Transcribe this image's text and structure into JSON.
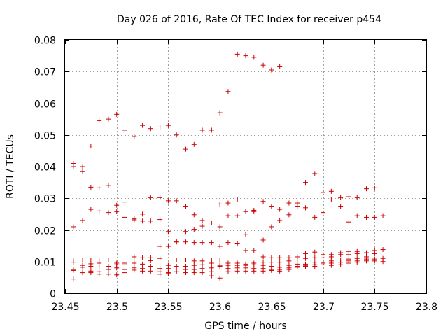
{
  "chart_data": {
    "type": "scatter",
    "title": "Day 026 of 2016, Rate Of TEC Index for receiver p454",
    "xlabel": "GPS time / hours",
    "ylabel": "ROTI / TECUs",
    "xlim": [
      23.45,
      23.8
    ],
    "ylim": [
      0,
      0.08
    ],
    "x_ticks": [
      23.45,
      23.5,
      23.55,
      23.6,
      23.65,
      23.7,
      23.75,
      23.8
    ],
    "x_tick_labels": [
      "23.45",
      "23.5",
      "23.55",
      "23.6",
      "23.65",
      "23.7",
      "23.75",
      "23.8"
    ],
    "y_ticks": [
      0,
      0.01,
      0.02,
      0.03,
      0.04,
      0.05,
      0.06,
      0.07,
      0.08
    ],
    "y_tick_labels": [
      "0",
      "0.01",
      "0.02",
      "0.03",
      "0.04",
      "0.05",
      "0.06",
      "0.07",
      "0.08"
    ],
    "grid": true,
    "legend": "none",
    "marker": "plus",
    "series_color": "#cc0000",
    "points": [
      [
        23.458,
        0.041
      ],
      [
        23.458,
        0.04
      ],
      [
        23.458,
        0.021
      ],
      [
        23.458,
        0.0105
      ],
      [
        23.458,
        0.0098
      ],
      [
        23.458,
        0.0075
      ],
      [
        23.458,
        0.0072
      ],
      [
        23.458,
        0.0045
      ],
      [
        23.467,
        0.04
      ],
      [
        23.467,
        0.0385
      ],
      [
        23.467,
        0.023
      ],
      [
        23.467,
        0.0105
      ],
      [
        23.467,
        0.0088
      ],
      [
        23.467,
        0.0082
      ],
      [
        23.467,
        0.0065
      ],
      [
        23.475,
        0.0465
      ],
      [
        23.475,
        0.0335
      ],
      [
        23.475,
        0.0265
      ],
      [
        23.475,
        0.0105
      ],
      [
        23.475,
        0.0093
      ],
      [
        23.475,
        0.0085
      ],
      [
        23.475,
        0.007
      ],
      [
        23.475,
        0.0065
      ],
      [
        23.483,
        0.0545
      ],
      [
        23.483,
        0.0333
      ],
      [
        23.483,
        0.026
      ],
      [
        23.483,
        0.0105
      ],
      [
        23.483,
        0.0095
      ],
      [
        23.483,
        0.0083
      ],
      [
        23.483,
        0.0068
      ],
      [
        23.483,
        0.006
      ],
      [
        23.492,
        0.055
      ],
      [
        23.492,
        0.034
      ],
      [
        23.492,
        0.0255
      ],
      [
        23.492,
        0.0105
      ],
      [
        23.492,
        0.0085
      ],
      [
        23.492,
        0.0075
      ],
      [
        23.492,
        0.006
      ],
      [
        23.5,
        0.0565
      ],
      [
        23.5,
        0.0278
      ],
      [
        23.5,
        0.0258
      ],
      [
        23.5,
        0.0095
      ],
      [
        23.5,
        0.009
      ],
      [
        23.5,
        0.008
      ],
      [
        23.5,
        0.0058
      ],
      [
        23.508,
        0.0515
      ],
      [
        23.508,
        0.0288
      ],
      [
        23.508,
        0.024
      ],
      [
        23.508,
        0.0095
      ],
      [
        23.508,
        0.009
      ],
      [
        23.508,
        0.0075
      ],
      [
        23.508,
        0.0065
      ],
      [
        23.517,
        0.0495
      ],
      [
        23.517,
        0.0235
      ],
      [
        23.517,
        0.0232
      ],
      [
        23.517,
        0.0115
      ],
      [
        23.517,
        0.0095
      ],
      [
        23.517,
        0.008
      ],
      [
        23.517,
        0.0073
      ],
      [
        23.525,
        0.053
      ],
      [
        23.525,
        0.025
      ],
      [
        23.525,
        0.0228
      ],
      [
        23.525,
        0.0112
      ],
      [
        23.525,
        0.0092
      ],
      [
        23.525,
        0.0078
      ],
      [
        23.525,
        0.007
      ],
      [
        23.533,
        0.052
      ],
      [
        23.533,
        0.0302
      ],
      [
        23.533,
        0.0228
      ],
      [
        23.533,
        0.0112
      ],
      [
        23.533,
        0.0103
      ],
      [
        23.533,
        0.0085
      ],
      [
        23.533,
        0.007
      ],
      [
        23.542,
        0.0525
      ],
      [
        23.542,
        0.0302
      ],
      [
        23.542,
        0.0233
      ],
      [
        23.542,
        0.0148
      ],
      [
        23.542,
        0.011
      ],
      [
        23.542,
        0.0078
      ],
      [
        23.542,
        0.0068
      ],
      [
        23.542,
        0.006
      ],
      [
        23.55,
        0.053
      ],
      [
        23.55,
        0.0292
      ],
      [
        23.55,
        0.0195
      ],
      [
        23.55,
        0.0148
      ],
      [
        23.55,
        0.0088
      ],
      [
        23.55,
        0.0078
      ],
      [
        23.55,
        0.0065
      ],
      [
        23.55,
        0.0062
      ],
      [
        23.558,
        0.05
      ],
      [
        23.558,
        0.0292
      ],
      [
        23.558,
        0.0162
      ],
      [
        23.558,
        0.0162
      ],
      [
        23.558,
        0.0105
      ],
      [
        23.558,
        0.0085
      ],
      [
        23.558,
        0.0068
      ],
      [
        23.567,
        0.0455
      ],
      [
        23.567,
        0.0275
      ],
      [
        23.567,
        0.0195
      ],
      [
        23.567,
        0.0162
      ],
      [
        23.567,
        0.0105
      ],
      [
        23.567,
        0.0085
      ],
      [
        23.567,
        0.0075
      ],
      [
        23.567,
        0.0065
      ],
      [
        23.575,
        0.047
      ],
      [
        23.575,
        0.0248
      ],
      [
        23.575,
        0.0202
      ],
      [
        23.575,
        0.016
      ],
      [
        23.575,
        0.0102
      ],
      [
        23.575,
        0.0088
      ],
      [
        23.575,
        0.0075
      ],
      [
        23.575,
        0.0065
      ],
      [
        23.583,
        0.0515
      ],
      [
        23.583,
        0.023
      ],
      [
        23.583,
        0.0212
      ],
      [
        23.583,
        0.016
      ],
      [
        23.583,
        0.0102
      ],
      [
        23.583,
        0.009
      ],
      [
        23.583,
        0.0078
      ],
      [
        23.583,
        0.0065
      ],
      [
        23.592,
        0.0515
      ],
      [
        23.592,
        0.0222
      ],
      [
        23.592,
        0.016
      ],
      [
        23.592,
        0.0105
      ],
      [
        23.592,
        0.0095
      ],
      [
        23.592,
        0.008
      ],
      [
        23.592,
        0.0068
      ],
      [
        23.592,
        0.0055
      ],
      [
        23.6,
        0.057
      ],
      [
        23.6,
        0.0282
      ],
      [
        23.6,
        0.021
      ],
      [
        23.6,
        0.0148
      ],
      [
        23.6,
        0.0105
      ],
      [
        23.6,
        0.0088
      ],
      [
        23.6,
        0.0085
      ],
      [
        23.6,
        0.0048
      ],
      [
        23.608,
        0.0637
      ],
      [
        23.608,
        0.0285
      ],
      [
        23.608,
        0.0245
      ],
      [
        23.608,
        0.016
      ],
      [
        23.608,
        0.0095
      ],
      [
        23.608,
        0.0088
      ],
      [
        23.608,
        0.0078
      ],
      [
        23.608,
        0.0068
      ],
      [
        23.617,
        0.0755
      ],
      [
        23.617,
        0.0295
      ],
      [
        23.617,
        0.0245
      ],
      [
        23.617,
        0.0158
      ],
      [
        23.617,
        0.0095
      ],
      [
        23.617,
        0.0088
      ],
      [
        23.617,
        0.008
      ],
      [
        23.617,
        0.007
      ],
      [
        23.625,
        0.075
      ],
      [
        23.625,
        0.0258
      ],
      [
        23.625,
        0.0185
      ],
      [
        23.625,
        0.0135
      ],
      [
        23.625,
        0.0092
      ],
      [
        23.625,
        0.0088
      ],
      [
        23.625,
        0.008
      ],
      [
        23.625,
        0.007
      ],
      [
        23.633,
        0.0745
      ],
      [
        23.633,
        0.0262
      ],
      [
        23.633,
        0.0258
      ],
      [
        23.633,
        0.0135
      ],
      [
        23.633,
        0.0095
      ],
      [
        23.633,
        0.009
      ],
      [
        23.633,
        0.0078
      ],
      [
        23.633,
        0.007
      ],
      [
        23.642,
        0.072
      ],
      [
        23.642,
        0.029
      ],
      [
        23.642,
        0.0168
      ],
      [
        23.642,
        0.0115
      ],
      [
        23.642,
        0.0098
      ],
      [
        23.642,
        0.0088
      ],
      [
        23.642,
        0.0078
      ],
      [
        23.642,
        0.007
      ],
      [
        23.65,
        0.0705
      ],
      [
        23.65,
        0.0275
      ],
      [
        23.65,
        0.021
      ],
      [
        23.65,
        0.0112
      ],
      [
        23.65,
        0.0098
      ],
      [
        23.65,
        0.0085
      ],
      [
        23.65,
        0.0075
      ],
      [
        23.65,
        0.0072
      ],
      [
        23.658,
        0.0715
      ],
      [
        23.658,
        0.0265
      ],
      [
        23.658,
        0.023
      ],
      [
        23.658,
        0.0112
      ],
      [
        23.658,
        0.0098
      ],
      [
        23.658,
        0.0082
      ],
      [
        23.658,
        0.0075
      ],
      [
        23.658,
        0.007
      ],
      [
        23.667,
        0.0285
      ],
      [
        23.667,
        0.0248
      ],
      [
        23.667,
        0.0112
      ],
      [
        23.667,
        0.0102
      ],
      [
        23.667,
        0.0088
      ],
      [
        23.667,
        0.008
      ],
      [
        23.667,
        0.0075
      ],
      [
        23.675,
        0.0285
      ],
      [
        23.675,
        0.0275
      ],
      [
        23.675,
        0.0115
      ],
      [
        23.675,
        0.0105
      ],
      [
        23.675,
        0.0092
      ],
      [
        23.675,
        0.0085
      ],
      [
        23.675,
        0.0082
      ],
      [
        23.683,
        0.035
      ],
      [
        23.683,
        0.027
      ],
      [
        23.683,
        0.0125
      ],
      [
        23.683,
        0.011
      ],
      [
        23.683,
        0.0092
      ],
      [
        23.683,
        0.0088
      ],
      [
        23.683,
        0.0085
      ],
      [
        23.692,
        0.0378
      ],
      [
        23.692,
        0.024
      ],
      [
        23.692,
        0.013
      ],
      [
        23.692,
        0.0112
      ],
      [
        23.692,
        0.0098
      ],
      [
        23.692,
        0.009
      ],
      [
        23.692,
        0.0085
      ],
      [
        23.7,
        0.0318
      ],
      [
        23.7,
        0.0255
      ],
      [
        23.7,
        0.0122
      ],
      [
        23.7,
        0.0112
      ],
      [
        23.7,
        0.0098
      ],
      [
        23.7,
        0.0095
      ],
      [
        23.7,
        0.009
      ],
      [
        23.708,
        0.0322
      ],
      [
        23.708,
        0.0295
      ],
      [
        23.708,
        0.0122
      ],
      [
        23.708,
        0.0115
      ],
      [
        23.708,
        0.0102
      ],
      [
        23.708,
        0.0095
      ],
      [
        23.708,
        0.0088
      ],
      [
        23.717,
        0.0302
      ],
      [
        23.717,
        0.0275
      ],
      [
        23.717,
        0.0128
      ],
      [
        23.717,
        0.0122
      ],
      [
        23.717,
        0.0105
      ],
      [
        23.717,
        0.0098
      ],
      [
        23.717,
        0.009
      ],
      [
        23.725,
        0.0305
      ],
      [
        23.725,
        0.0225
      ],
      [
        23.725,
        0.0132
      ],
      [
        23.725,
        0.0122
      ],
      [
        23.725,
        0.0108
      ],
      [
        23.725,
        0.0102
      ],
      [
        23.725,
        0.0095
      ],
      [
        23.733,
        0.0302
      ],
      [
        23.733,
        0.0245
      ],
      [
        23.733,
        0.0132
      ],
      [
        23.733,
        0.0125
      ],
      [
        23.733,
        0.011
      ],
      [
        23.733,
        0.0102
      ],
      [
        23.733,
        0.0098
      ],
      [
        23.742,
        0.033
      ],
      [
        23.742,
        0.024
      ],
      [
        23.742,
        0.0128
      ],
      [
        23.742,
        0.0115
      ],
      [
        23.742,
        0.0108
      ],
      [
        23.742,
        0.0102
      ],
      [
        23.75,
        0.0333
      ],
      [
        23.75,
        0.024
      ],
      [
        23.75,
        0.0135
      ],
      [
        23.75,
        0.0125
      ],
      [
        23.75,
        0.0108
      ],
      [
        23.75,
        0.0105
      ],
      [
        23.75,
        0.0102
      ],
      [
        23.758,
        0.0245
      ],
      [
        23.758,
        0.0138
      ],
      [
        23.758,
        0.011
      ],
      [
        23.758,
        0.0105
      ],
      [
        23.758,
        0.01
      ]
    ]
  }
}
